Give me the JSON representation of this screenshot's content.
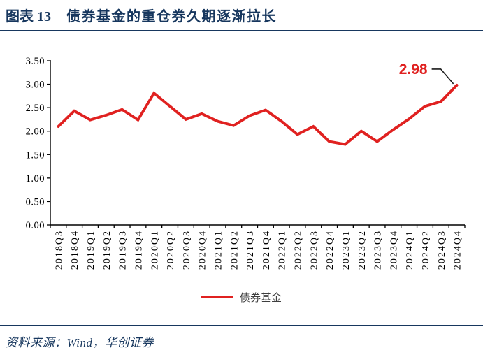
{
  "header": {
    "figure_label": "图表 13",
    "title": "债券基金的重仓券久期逐渐拉长"
  },
  "chart_data": {
    "type": "line",
    "title": "",
    "xlabel": "",
    "ylabel": "",
    "categories": [
      "2018Q3",
      "2018Q4",
      "2019Q1",
      "2019Q2",
      "2019Q3",
      "2019Q4",
      "2020Q1",
      "2020Q2",
      "2020Q3",
      "2020Q4",
      "2021Q1",
      "2021Q2",
      "2021Q3",
      "2021Q4",
      "2022Q1",
      "2022Q2",
      "2022Q3",
      "2022Q4",
      "2023Q1",
      "2023Q2",
      "2023Q3",
      "2023Q4",
      "2024Q1",
      "2024Q2",
      "2024Q3",
      "2024Q4"
    ],
    "series": [
      {
        "name": "债券基金",
        "values": [
          2.1,
          2.43,
          2.24,
          2.34,
          2.46,
          2.24,
          2.81,
          2.53,
          2.25,
          2.37,
          2.21,
          2.12,
          2.33,
          2.45,
          2.21,
          1.93,
          2.1,
          1.78,
          1.72,
          2.0,
          1.78,
          2.03,
          2.26,
          2.53,
          2.63,
          2.98
        ]
      }
    ],
    "ylim": [
      0,
      3.5
    ],
    "ytick_step": 0.5,
    "ytick_labels": [
      "0.00",
      "0.50",
      "1.00",
      "1.50",
      "2.00",
      "2.50",
      "3.00",
      "3.50"
    ],
    "grid": false,
    "legend_position": "bottom",
    "line_color": "#e02120",
    "axis_color": "#000000",
    "annotation": {
      "text": "2.98",
      "series_index": 0,
      "point_index": 25,
      "color": "#e02120"
    }
  },
  "legend": {
    "label": "债券基金"
  },
  "footer": {
    "source": "资料来源：Wind，华创证券"
  },
  "colors": {
    "accent_navy": "#17375e",
    "line_red": "#e02120",
    "callout_black": "#1a1a1a",
    "tick_label": "#000000"
  }
}
